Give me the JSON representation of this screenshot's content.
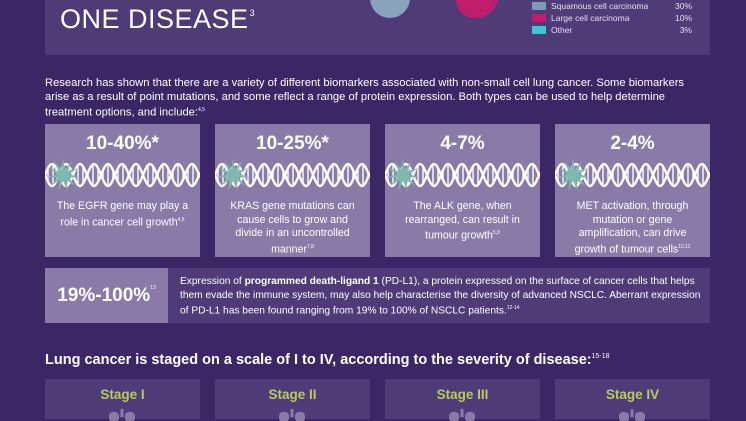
{
  "header": {
    "title": "ONE DISEASE",
    "title_ref": "3",
    "legend": [
      {
        "label": "Squamous cell carcinoma",
        "pct": "30%",
        "color": "#7f9ab4"
      },
      {
        "label": "Large cell carcinoma",
        "pct": "10%",
        "color": "#c51b6b"
      },
      {
        "label": "Other",
        "pct": "3%",
        "color": "#3ec5d8"
      }
    ]
  },
  "intro": {
    "text": "Research has shown that there are a variety of different biomarkers associated with non-small cell lung cancer. Some biomarkers arise as a result of point mutations, and some reflect a range of protein expression. Both types can be used to help determine treatment options, and include:",
    "ref": "4,5"
  },
  "biomarkers": [
    {
      "value": "10-40%*",
      "desc": "The EGFR gene may play a role in cancer cell growth",
      "ref": "4,6"
    },
    {
      "value": "10-25%*",
      "desc": "KRAS gene mutations can cause cells to grow and divide in an uncontrolled manner",
      "ref": "7,8"
    },
    {
      "value": "4-7%",
      "desc": "The ALK gene, when rearranged, can result in tumour growth",
      "ref": "5,9"
    },
    {
      "value": "2-4%",
      "desc": "MET activation, through mutation or gene amplification, can drive growth of tumour cells",
      "ref": "10,11"
    }
  ],
  "pdl1": {
    "value": "19%-100%",
    "value_ref": "13",
    "text_pre": "Expression of ",
    "text_bold": "programmed death-ligand 1",
    "text_post": " (PD-L1), a protein expressed on the surface of cancer cells that helps them evade the immune system, may also help characterise the diversity of advanced NSCLC. Aberrant expression of PD-L1 has been found ranging from 19% to 100% of NSCLC patients.",
    "ref": "12-14"
  },
  "staging": {
    "heading": "Lung cancer is staged on a scale of I to IV, according to the severity of disease:",
    "heading_ref": "15-18",
    "stages": [
      "Stage I",
      "Stage II",
      "Stage III",
      "Stage IV"
    ]
  },
  "colors": {
    "background": "#3b2666",
    "panel": "#4e3b78",
    "card": "#8a7aa8",
    "stage_label": "#b7cd5a",
    "starburst": "#7fb8ad"
  }
}
